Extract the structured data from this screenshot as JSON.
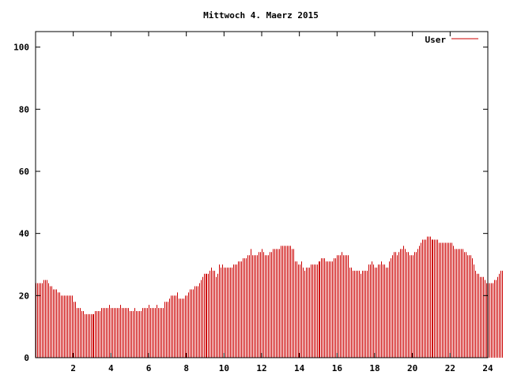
{
  "chart_data": {
    "type": "bar",
    "title": "Mittwoch 4. Maerz 2015",
    "xlabel": "",
    "ylabel": "",
    "xlim": [
      0,
      24
    ],
    "ylim": [
      0,
      105
    ],
    "x_ticks": [
      "2",
      "4",
      "6",
      "8",
      "10",
      "12",
      "14",
      "16",
      "18",
      "20",
      "22",
      "24"
    ],
    "y_ticks": [
      "0",
      "20",
      "40",
      "60",
      "80",
      "100"
    ],
    "grid": false,
    "legend": "top-right",
    "series": [
      {
        "name": "User",
        "color": "#cc0000",
        "step_minutes": 5,
        "values": [
          24,
          24,
          24,
          24,
          24,
          25,
          25,
          25,
          24,
          23,
          23,
          22,
          22,
          22,
          21,
          21,
          20,
          20,
          20,
          20,
          20,
          20,
          20,
          20,
          18,
          18,
          16,
          16,
          16,
          15,
          15,
          14,
          14,
          14,
          14,
          14,
          14,
          14,
          15,
          15,
          15,
          15,
          16,
          16,
          16,
          16,
          16,
          17,
          16,
          16,
          16,
          16,
          16,
          16,
          17,
          16,
          16,
          16,
          16,
          16,
          15,
          15,
          15,
          16,
          15,
          15,
          15,
          15,
          16,
          16,
          16,
          16,
          17,
          16,
          16,
          16,
          16,
          17,
          16,
          16,
          16,
          16,
          18,
          18,
          18,
          19,
          20,
          20,
          20,
          20,
          21,
          19,
          19,
          19,
          19,
          20,
          20,
          21,
          22,
          22,
          22,
          23,
          23,
          23,
          24,
          25,
          26,
          27,
          27,
          27,
          27,
          28,
          29,
          28,
          28,
          26,
          27,
          30,
          29,
          30,
          29,
          29,
          29,
          29,
          29,
          29,
          30,
          30,
          30,
          31,
          31,
          31,
          32,
          32,
          32,
          33,
          33,
          35,
          33,
          33,
          33,
          33,
          34,
          34,
          35,
          34,
          33,
          33,
          33,
          34,
          34,
          35,
          35,
          35,
          35,
          35,
          36,
          36,
          36,
          36,
          36,
          36,
          36,
          35,
          35,
          31,
          31,
          30,
          30,
          31,
          29,
          28,
          29,
          29,
          29,
          30,
          30,
          30,
          30,
          30,
          31,
          31,
          32,
          32,
          32,
          31,
          31,
          31,
          31,
          31,
          32,
          32,
          33,
          33,
          33,
          34,
          33,
          33,
          33,
          33,
          29,
          29,
          28,
          28,
          28,
          28,
          28,
          27,
          28,
          28,
          28,
          28,
          30,
          30,
          31,
          30,
          29,
          29,
          30,
          30,
          31,
          30,
          30,
          29,
          29,
          31,
          32,
          33,
          34,
          34,
          33,
          34,
          35,
          35,
          36,
          35,
          34,
          34,
          33,
          33,
          33,
          34,
          34,
          35,
          36,
          37,
          38,
          38,
          38,
          39,
          39,
          39,
          38,
          38,
          38,
          38,
          38,
          37,
          37,
          37,
          37,
          37,
          37,
          37,
          37,
          37,
          36,
          35,
          35,
          35,
          35,
          35,
          35,
          34,
          34,
          33,
          33,
          33,
          32,
          30,
          28,
          27,
          27,
          26,
          26,
          26,
          25,
          24,
          24,
          24,
          24,
          24,
          25,
          25,
          26,
          27,
          28,
          28
        ]
      }
    ]
  }
}
